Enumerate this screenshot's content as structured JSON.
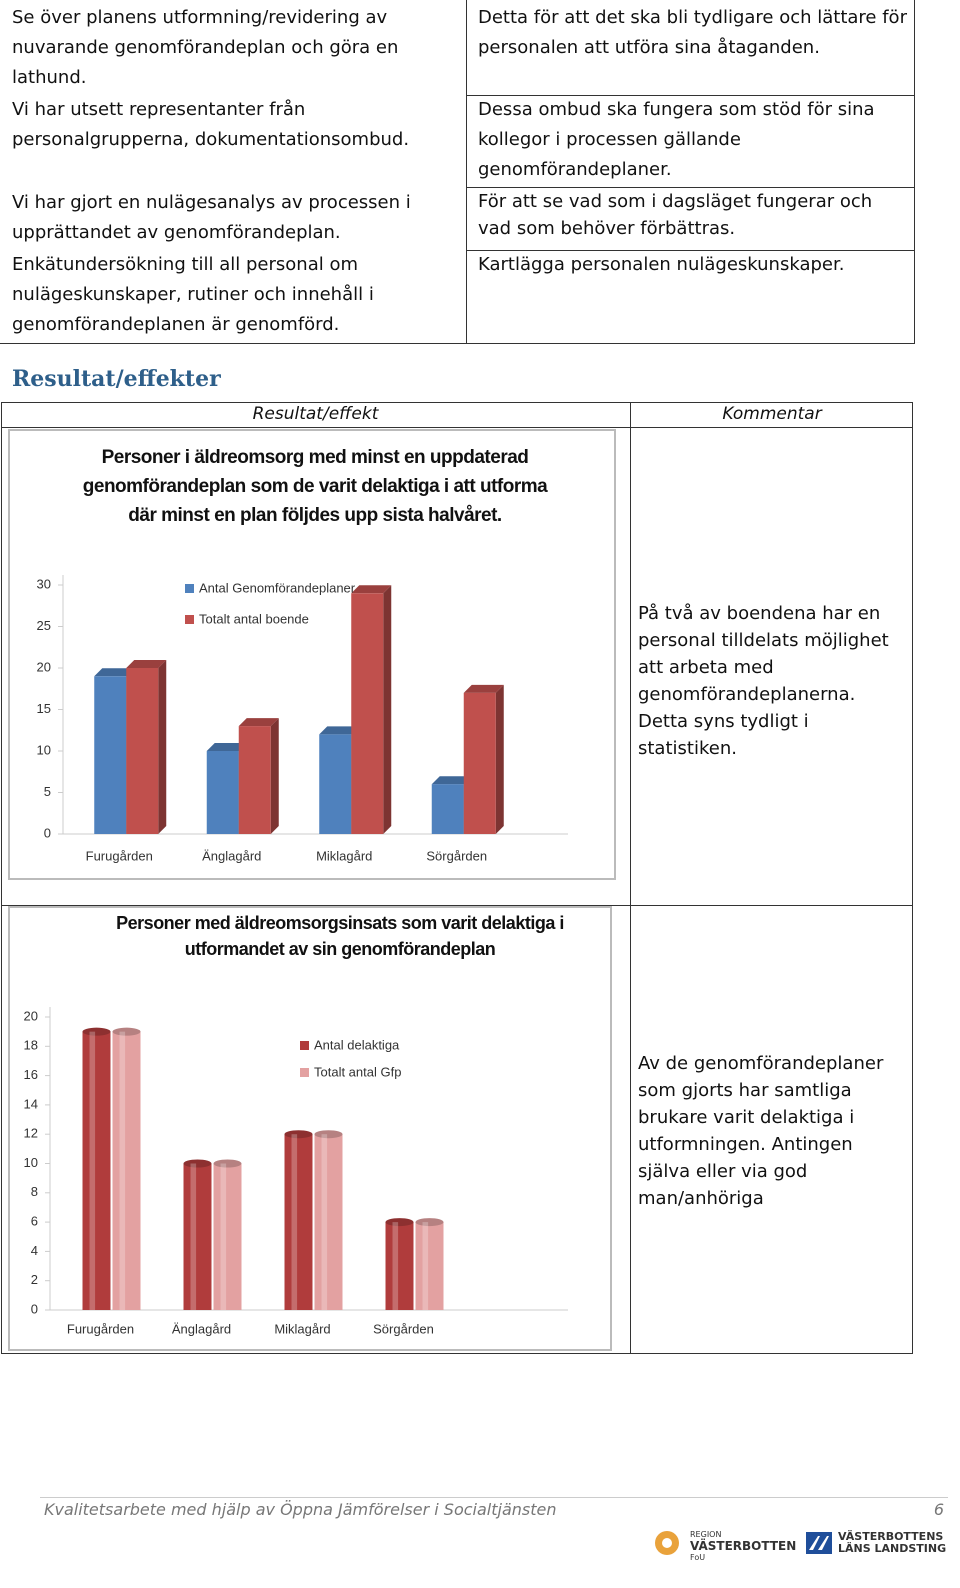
{
  "top_table": {
    "left": [
      "Se över planens utformning/revidering av nuvarande genomförandeplan och göra en lathund.",
      "Vi har utsett representanter från personalgrupperna, dokumentationsombud.",
      "Vi har gjort en nulägesanalys av processen i upprättandet av genomförandeplan.",
      "Enkätundersökning till all personal om nulägeskunskaper, rutiner och innehåll i genomförandeplanen är genomförd."
    ],
    "right": [
      "Detta för att det ska bli tydligare och lättare för personalen att utföra sina åtaganden.",
      "Dessa ombud ska fungera som stöd för sina kollegor i processen gällande genomförandeplaner.",
      "För att se vad som i dagsläget fungerar och vad som behöver förbättras.",
      "Kartlägga personalen nulägeskunskaper."
    ]
  },
  "section_heading": "Resultat/effekter",
  "results_table": {
    "headers": [
      "Resultat/effekt",
      "Kommentar"
    ],
    "comments": [
      "På två av boendena har en personal tilldelats möjlighet att arbeta med genomförandeplanerna. Detta syns tydligt i statistiken.",
      "Av de genomförandeplaner som gjorts har samtliga brukare varit delaktiga i utformningen. Antingen själva eller via god man/anhöriga"
    ]
  },
  "chart_data": [
    {
      "type": "bar",
      "bar_shape": "box",
      "title": "Personer i äldreomsorg med minst en uppdaterad genomförandeplan  som de varit delaktiga i att utforma där minst en plan följdes upp sista halvåret.",
      "categories": [
        "Furugården",
        "Änglagård",
        "Miklagård",
        "Sörgården"
      ],
      "series": [
        {
          "name": "Antal Genomförandeplaner",
          "color": "#4f81bd",
          "values": [
            19,
            10,
            12,
            6
          ]
        },
        {
          "name": "Totalt antal boende",
          "color": "#c0504d",
          "values": [
            20,
            13,
            29,
            17
          ]
        }
      ],
      "ylim": [
        0,
        30
      ],
      "yticks": [
        0,
        5,
        10,
        15,
        20,
        25,
        30
      ]
    },
    {
      "type": "bar",
      "bar_shape": "cylinder",
      "title": "Personer med äldreomsorgsinsats som varit delaktiga i utformandet av sin genomförandeplan",
      "categories": [
        "Furugården",
        "Änglagård",
        "Miklagård",
        "Sörgården"
      ],
      "series": [
        {
          "name": "Antal delaktiga",
          "color": "#b03c3c",
          "values": [
            19,
            10,
            12,
            6
          ]
        },
        {
          "name": "Totalt antal Gfp",
          "color": "#e3a1a1",
          "values": [
            19,
            10,
            12,
            6
          ]
        }
      ],
      "ylim": [
        0,
        20
      ],
      "yticks": [
        0,
        2,
        4,
        6,
        8,
        10,
        12,
        14,
        16,
        18,
        20
      ]
    }
  ],
  "footer": {
    "text": "Kvalitetsarbete med hjälp av Öppna Jämförelser i Socialtjänsten",
    "page_number": 6
  },
  "logos": {
    "left": [
      "REGION",
      "VÄSTERBOTTEN",
      "FoU"
    ],
    "right": [
      "VÄSTERBOTTENS",
      "LÄNS LANDSTING"
    ]
  }
}
